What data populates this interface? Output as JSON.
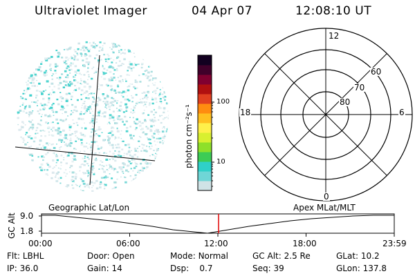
{
  "header": {
    "title": "Ultraviolet Imager",
    "date": "04 Apr 07",
    "time": "12:08:10 UT"
  },
  "colorbar": {
    "unit_label": "photon cm⁻²s⁻¹",
    "ticks": [
      "100",
      "10"
    ],
    "colors": [
      "#cfe3e6",
      "#6fd6d6",
      "#2fd0c8",
      "#3ccc55",
      "#8ee02a",
      "#d8f030",
      "#fff04a",
      "#ffc020",
      "#ff8c10",
      "#e04020",
      "#b01010",
      "#800030",
      "#40002a",
      "#120020"
    ]
  },
  "polar_plot": {
    "mlt_labels": {
      "top": "12",
      "bottom": "0",
      "left": "18",
      "right": "6"
    },
    "lat_labels": [
      "60",
      "70",
      "80"
    ]
  },
  "timeline": {
    "left_label": "Geographic Lat/Lon",
    "right_label": "Apex MLat/MLT",
    "y_axis_label": "GC Alt",
    "y_ticks": [
      "9.0",
      "1.8"
    ],
    "x_ticks": [
      "00:00",
      "06:00",
      "12:00",
      "18:00",
      "23:59"
    ],
    "current_time_marker": "12:08",
    "marker_color": "#e00000"
  },
  "status": {
    "row1": [
      {
        "label": "Flt:",
        "value": "LBHL"
      },
      {
        "label": "Door:",
        "value": "Open"
      },
      {
        "label": "Mode:",
        "value": "Normal"
      },
      {
        "label": "GC Alt:",
        "value": "2.5 Re"
      },
      {
        "label": "GLat:",
        "value": "10.2"
      }
    ],
    "row2": [
      {
        "label": "IP:",
        "value": "36.0"
      },
      {
        "label": "Gain:",
        "value": "14"
      },
      {
        "label": "Dsp:",
        "value": "0.7"
      },
      {
        "label": "Seq:",
        "value": "39"
      },
      {
        "label": "GLon:",
        "value": "137.8"
      }
    ]
  }
}
